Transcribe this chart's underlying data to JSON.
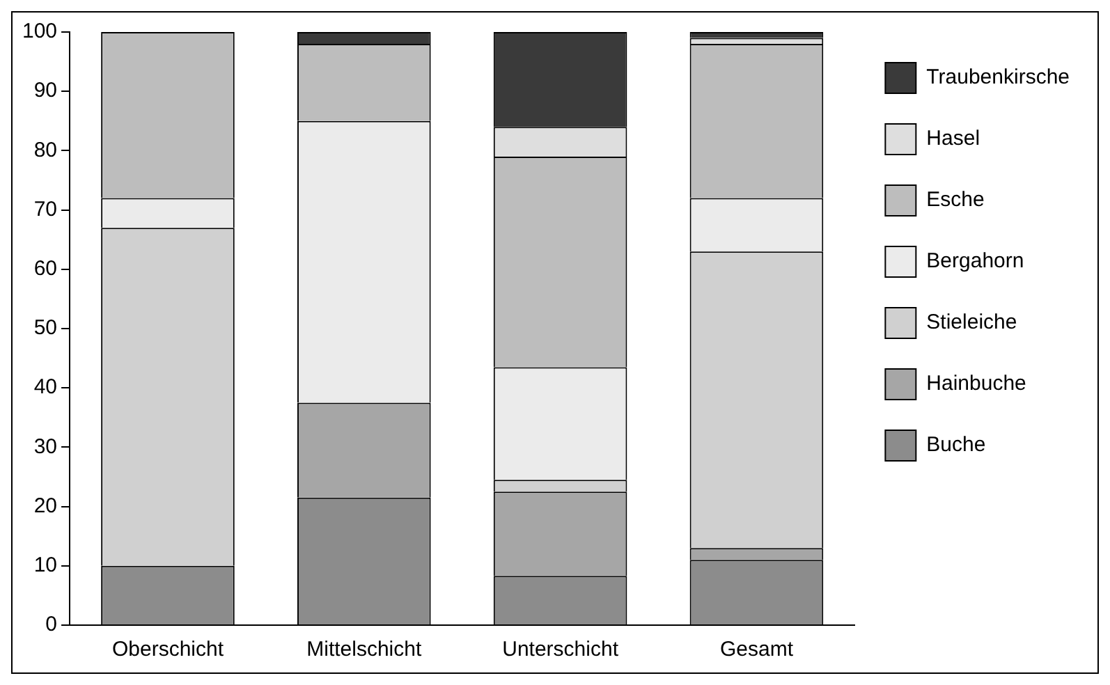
{
  "chart_data": {
    "type": "bar",
    "stacked": true,
    "categories": [
      "Oberschicht",
      "Mittelschicht",
      "Unterschicht",
      "Gesamt"
    ],
    "series": [
      {
        "name": "Buche",
        "color": "#8c8c8c",
        "values": [
          10,
          21.5,
          8.3,
          11
        ]
      },
      {
        "name": "Hainbuche",
        "color": "#a6a6a6",
        "values": [
          0,
          16,
          14.2,
          2
        ]
      },
      {
        "name": "Stieleiche",
        "color": "#d0d0d0",
        "values": [
          57,
          0,
          2,
          50
        ]
      },
      {
        "name": "Bergahorn",
        "color": "#ebebeb",
        "values": [
          5,
          47.5,
          19,
          9
        ]
      },
      {
        "name": "Esche",
        "color": "#bdbdbd",
        "values": [
          28,
          13,
          35.5,
          26
        ]
      },
      {
        "name": "Hasel",
        "color": "#dedede",
        "values": [
          0,
          0,
          5,
          1
        ]
      },
      {
        "name": "Traubenkirsche",
        "color": "#3a3a3a",
        "values": [
          0,
          2,
          16,
          1
        ]
      }
    ],
    "ylim": [
      0,
      100
    ],
    "yticks": [
      0,
      10,
      20,
      30,
      40,
      50,
      60,
      70,
      80,
      90,
      100
    ],
    "grid": false,
    "legend": "top right"
  }
}
